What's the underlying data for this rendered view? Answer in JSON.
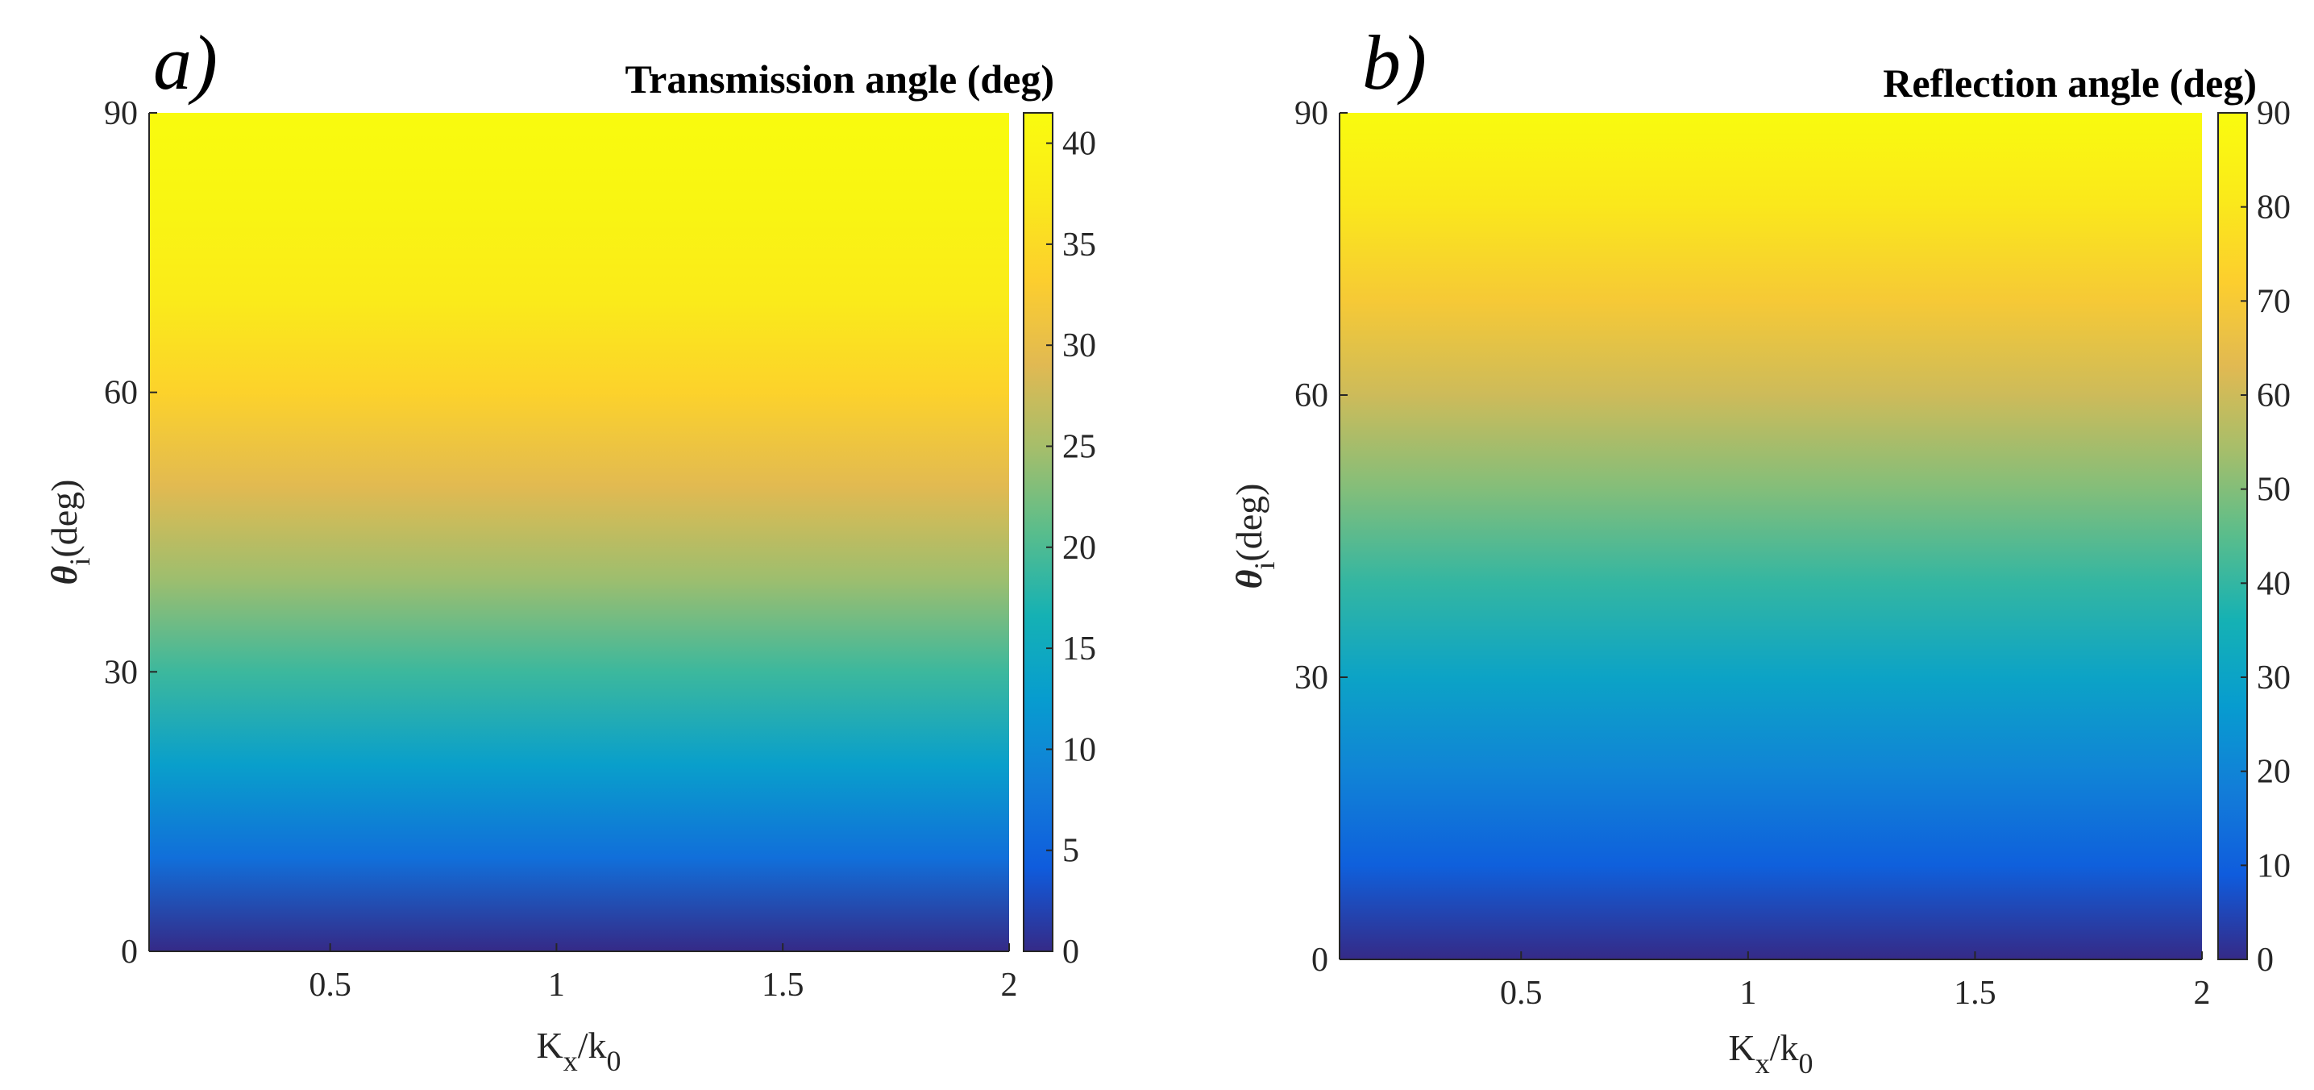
{
  "chart_data": [
    {
      "type": "heatmap",
      "panel_label": "a)",
      "title": "Transmission angle (deg)",
      "xlabel": {
        "main": "K",
        "sub1": "x",
        "mid": "/k",
        "sub2": "0"
      },
      "ylabel": {
        "symbol": "θ",
        "sub": "i",
        "rest": "(deg)"
      },
      "xlim": [
        0.1,
        2
      ],
      "ylim": [
        0,
        90
      ],
      "xticks": [
        0.5,
        1,
        1.5,
        2
      ],
      "xtick_labels": [
        "0.5",
        "1",
        "1.5",
        "2"
      ],
      "yticks": [
        0,
        30,
        60,
        90
      ],
      "ytick_labels": [
        "0",
        "30",
        "60",
        "90"
      ],
      "color_range": [
        0,
        41.5
      ],
      "colorbar_ticks": [
        0,
        5,
        10,
        15,
        20,
        25,
        30,
        35,
        40
      ],
      "colorbar_tick_labels": [
        "0",
        "5",
        "10",
        "15",
        "20",
        "25",
        "30",
        "35",
        "40"
      ],
      "colormap": "parula",
      "rows_theta_deg": [
        0,
        10,
        20,
        30,
        40,
        50,
        60,
        70,
        80,
        90
      ],
      "values_deg": [
        0,
        6.6,
        13.0,
        19.0,
        24.5,
        29.2,
        33.8,
        37.5,
        40.0,
        41.5
      ],
      "note": "value is constant along Kx/k0"
    },
    {
      "type": "heatmap",
      "panel_label": "b)",
      "title": "Reflection angle (deg)",
      "xlabel": {
        "main": "K",
        "sub1": "x",
        "mid": "/k",
        "sub2": "0"
      },
      "ylabel": {
        "symbol": "θ",
        "sub": "i",
        "rest": "(deg)"
      },
      "xlim": [
        0.1,
        2
      ],
      "ylim": [
        0,
        90
      ],
      "xticks": [
        0.5,
        1,
        1.5,
        2
      ],
      "xtick_labels": [
        "0.5",
        "1",
        "1.5",
        "2"
      ],
      "yticks": [
        0,
        30,
        60,
        90
      ],
      "ytick_labels": [
        "0",
        "30",
        "60",
        "90"
      ],
      "color_range": [
        0,
        90
      ],
      "colorbar_ticks": [
        0,
        10,
        20,
        30,
        40,
        50,
        60,
        70,
        80,
        90
      ],
      "colorbar_tick_labels": [
        "0",
        "10",
        "20",
        "30",
        "40",
        "50",
        "60",
        "70",
        "80",
        "90"
      ],
      "colormap": "parula",
      "rows_theta_deg": [
        0,
        10,
        20,
        30,
        40,
        50,
        60,
        70,
        80,
        90
      ],
      "values_deg": [
        0,
        10,
        20,
        30,
        40,
        50,
        60,
        70,
        80,
        90
      ],
      "note": "value equals incidence angle, constant along Kx/k0"
    }
  ]
}
